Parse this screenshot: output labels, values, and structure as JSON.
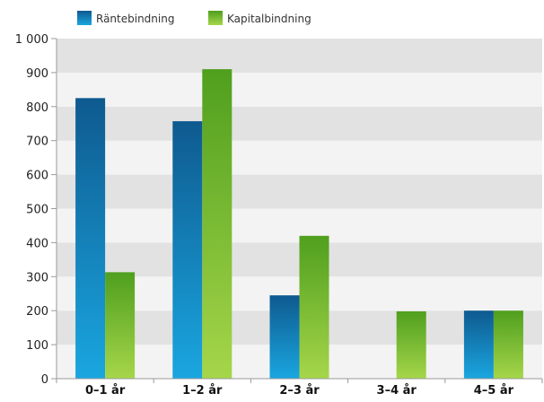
{
  "colors": {
    "band_light": "#f3f3f3",
    "band_dark": "#e2e2e2",
    "axis": "#9a9a9a",
    "series_1_top": "#0e5a8f",
    "series_1_bottom": "#1aa6e0",
    "series_2_top": "#4f9f1e",
    "series_2_bottom": "#a6d64a"
  },
  "chart_data": {
    "type": "bar",
    "title": "",
    "xlabel": "",
    "ylabel": "",
    "ylim": [
      0,
      1000
    ],
    "yticks": [
      0,
      100,
      200,
      300,
      400,
      500,
      600,
      700,
      800,
      900,
      1000
    ],
    "ytick_labels": [
      "0",
      "100",
      "200",
      "300",
      "400",
      "500",
      "600",
      "700",
      "800",
      "900",
      "1 000"
    ],
    "categories": [
      "0–1 år",
      "1–2 år",
      "2–3 år",
      "3–4 år",
      "4–5 år"
    ],
    "series": [
      {
        "name": "Räntebindning",
        "values": [
          825,
          757,
          245,
          0,
          200
        ]
      },
      {
        "name": "Kapitalbindning",
        "values": [
          313,
          910,
          420,
          198,
          200
        ]
      }
    ],
    "legend_position": "top-left",
    "grid": "alternating horizontal bands"
  }
}
